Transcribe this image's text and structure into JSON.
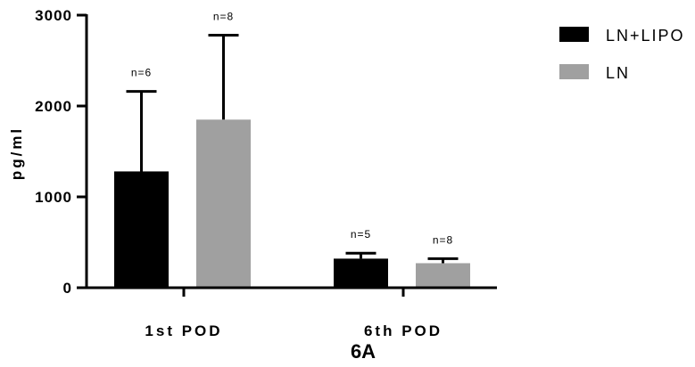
{
  "chart_data": {
    "type": "bar",
    "title": "6A",
    "ylabel": "pg/ml",
    "xlabel": "",
    "ylim": [
      0,
      3000
    ],
    "yticks": [
      "0",
      "1000",
      "2000",
      "3000"
    ],
    "categories": [
      "1st POD",
      "6th POD"
    ],
    "legend_position": "top-right",
    "grid": false,
    "series": [
      {
        "name": "LN+LIPO",
        "color": "#000000",
        "values": [
          1280,
          320
        ],
        "errors": [
          880,
          60
        ],
        "n_labels": [
          "n=6",
          "n=5"
        ]
      },
      {
        "name": "LN",
        "color": "#a0a0a0",
        "values": [
          1850,
          270
        ],
        "errors": [
          930,
          50
        ],
        "n_labels": [
          "n=8",
          "n=8"
        ]
      }
    ]
  }
}
